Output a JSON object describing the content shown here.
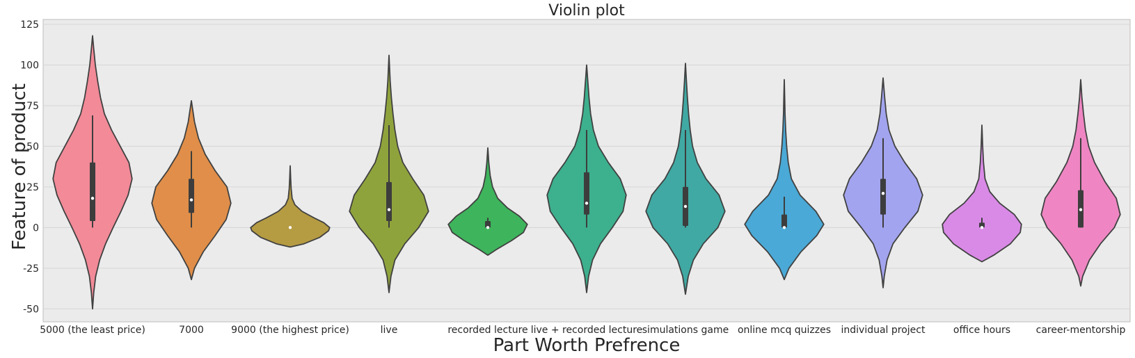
{
  "chart_data": {
    "type": "violin",
    "title": "Violin plot",
    "xlabel": "Part Worth Prefrence",
    "ylabel": "Feature of product",
    "ylim": [
      -58,
      128
    ],
    "yticks": [
      -50,
      -25,
      0,
      25,
      50,
      75,
      100,
      125
    ],
    "grid": true,
    "background": "#ebebeb",
    "categories": [
      "5000 (the least price)",
      "7000",
      "9000 (the highest price)",
      "live",
      "recorded lecture",
      "live + recorded lecture",
      "simulations game",
      "online mcq quizzes",
      "individual project",
      "office hours",
      "career-mentorship"
    ],
    "colors": [
      "#f28a98",
      "#e08e49",
      "#b59b42",
      "#8fa33c",
      "#3eb45c",
      "#3db08d",
      "#40a9a3",
      "#4aa9d6",
      "#a3a4ef",
      "#d98ae6",
      "#ef86c3"
    ],
    "series": [
      {
        "min": -50,
        "max": 118,
        "q1": 4,
        "median": 18,
        "q3": 40,
        "whisker_low": 0,
        "whisker_high": 69,
        "profile": [
          [
            -50,
            0
          ],
          [
            -40,
            0.03
          ],
          [
            -30,
            0.08
          ],
          [
            -20,
            0.18
          ],
          [
            -10,
            0.33
          ],
          [
            0,
            0.52
          ],
          [
            10,
            0.72
          ],
          [
            20,
            0.9
          ],
          [
            30,
            1
          ],
          [
            40,
            0.92
          ],
          [
            50,
            0.7
          ],
          [
            60,
            0.48
          ],
          [
            70,
            0.3
          ],
          [
            80,
            0.2
          ],
          [
            90,
            0.13
          ],
          [
            100,
            0.07
          ],
          [
            110,
            0.03
          ],
          [
            118,
            0
          ]
        ]
      },
      {
        "min": -32,
        "max": 78,
        "q1": 9,
        "median": 17,
        "q3": 30,
        "whisker_low": 0,
        "whisker_high": 47,
        "profile": [
          [
            -32,
            0
          ],
          [
            -25,
            0.08
          ],
          [
            -15,
            0.3
          ],
          [
            -5,
            0.6
          ],
          [
            5,
            0.88
          ],
          [
            15,
            1
          ],
          [
            25,
            0.9
          ],
          [
            35,
            0.6
          ],
          [
            45,
            0.35
          ],
          [
            55,
            0.18
          ],
          [
            65,
            0.08
          ],
          [
            78,
            0
          ]
        ]
      },
      {
        "min": -12,
        "max": 38,
        "q1": 0,
        "median": 0,
        "q3": 0,
        "whisker_low": 0,
        "whisker_high": 0,
        "profile": [
          [
            -12,
            0
          ],
          [
            -10,
            0.35
          ],
          [
            -6,
            0.75
          ],
          [
            -2,
            0.97
          ],
          [
            0,
            1
          ],
          [
            3,
            0.85
          ],
          [
            6,
            0.6
          ],
          [
            10,
            0.3
          ],
          [
            14,
            0.12
          ],
          [
            18,
            0.05
          ],
          [
            24,
            0.025
          ],
          [
            30,
            0.012
          ],
          [
            38,
            0
          ]
        ]
      },
      {
        "min": -40,
        "max": 106,
        "q1": 4,
        "median": 11,
        "q3": 28,
        "whisker_low": 0,
        "whisker_high": 63,
        "profile": [
          [
            -40,
            0
          ],
          [
            -30,
            0.05
          ],
          [
            -20,
            0.15
          ],
          [
            -10,
            0.4
          ],
          [
            0,
            0.75
          ],
          [
            10,
            1
          ],
          [
            20,
            0.88
          ],
          [
            30,
            0.6
          ],
          [
            40,
            0.35
          ],
          [
            50,
            0.22
          ],
          [
            60,
            0.15
          ],
          [
            70,
            0.1
          ],
          [
            80,
            0.06
          ],
          [
            90,
            0.03
          ],
          [
            106,
            0
          ]
        ]
      },
      {
        "min": -17,
        "max": 49,
        "q1": 0,
        "median": 0,
        "q3": 4,
        "whisker_low": 0,
        "whisker_high": 6,
        "profile": [
          [
            -17,
            0
          ],
          [
            -13,
            0.25
          ],
          [
            -8,
            0.6
          ],
          [
            -3,
            0.9
          ],
          [
            2,
            1
          ],
          [
            7,
            0.8
          ],
          [
            12,
            0.5
          ],
          [
            18,
            0.25
          ],
          [
            25,
            0.12
          ],
          [
            32,
            0.06
          ],
          [
            40,
            0.025
          ],
          [
            49,
            0
          ]
        ]
      },
      {
        "min": -40,
        "max": 100,
        "q1": 8,
        "median": 15,
        "q3": 34,
        "whisker_low": 0,
        "whisker_high": 60,
        "profile": [
          [
            -40,
            0
          ],
          [
            -30,
            0.05
          ],
          [
            -20,
            0.15
          ],
          [
            -10,
            0.35
          ],
          [
            0,
            0.65
          ],
          [
            10,
            0.92
          ],
          [
            20,
            1
          ],
          [
            30,
            0.85
          ],
          [
            40,
            0.55
          ],
          [
            50,
            0.3
          ],
          [
            60,
            0.17
          ],
          [
            70,
            0.1
          ],
          [
            80,
            0.06
          ],
          [
            90,
            0.03
          ],
          [
            100,
            0
          ]
        ]
      },
      {
        "min": -41,
        "max": 101,
        "q1": 1,
        "median": 13,
        "q3": 25,
        "whisker_low": 0,
        "whisker_high": 60,
        "profile": [
          [
            -41,
            0
          ],
          [
            -30,
            0.07
          ],
          [
            -20,
            0.2
          ],
          [
            -10,
            0.45
          ],
          [
            0,
            0.82
          ],
          [
            10,
            1
          ],
          [
            20,
            0.85
          ],
          [
            30,
            0.52
          ],
          [
            40,
            0.3
          ],
          [
            50,
            0.18
          ],
          [
            60,
            0.12
          ],
          [
            70,
            0.08
          ],
          [
            80,
            0.05
          ],
          [
            90,
            0.025
          ],
          [
            101,
            0
          ]
        ]
      },
      {
        "min": -32,
        "max": 91,
        "q1": 0,
        "median": 0,
        "q3": 8,
        "whisker_low": 0,
        "whisker_high": 19,
        "profile": [
          [
            -32,
            0
          ],
          [
            -25,
            0.12
          ],
          [
            -15,
            0.42
          ],
          [
            -5,
            0.82
          ],
          [
            2,
            1
          ],
          [
            10,
            0.8
          ],
          [
            20,
            0.4
          ],
          [
            30,
            0.18
          ],
          [
            40,
            0.1
          ],
          [
            50,
            0.06
          ],
          [
            60,
            0.035
          ],
          [
            70,
            0.02
          ],
          [
            80,
            0.01
          ],
          [
            91,
            0
          ]
        ]
      },
      {
        "min": -37,
        "max": 92,
        "q1": 8,
        "median": 21,
        "q3": 30,
        "whisker_low": 0,
        "whisker_high": 55,
        "profile": [
          [
            -37,
            0
          ],
          [
            -30,
            0.03
          ],
          [
            -20,
            0.1
          ],
          [
            -10,
            0.25
          ],
          [
            0,
            0.55
          ],
          [
            10,
            0.88
          ],
          [
            20,
            1
          ],
          [
            30,
            0.85
          ],
          [
            40,
            0.55
          ],
          [
            50,
            0.3
          ],
          [
            60,
            0.15
          ],
          [
            70,
            0.08
          ],
          [
            80,
            0.04
          ],
          [
            92,
            0
          ]
        ]
      },
      {
        "min": -21,
        "max": 63,
        "q1": 0,
        "median": 0,
        "q3": 3,
        "whisker_low": 0,
        "whisker_high": 6,
        "profile": [
          [
            -21,
            0
          ],
          [
            -17,
            0.3
          ],
          [
            -10,
            0.72
          ],
          [
            -3,
            0.97
          ],
          [
            2,
            1
          ],
          [
            8,
            0.82
          ],
          [
            15,
            0.45
          ],
          [
            22,
            0.2
          ],
          [
            30,
            0.08
          ],
          [
            40,
            0.04
          ],
          [
            50,
            0.02
          ],
          [
            63,
            0
          ]
        ]
      },
      {
        "min": -36,
        "max": 91,
        "q1": 0,
        "median": 11,
        "q3": 23,
        "whisker_low": 0,
        "whisker_high": 55,
        "profile": [
          [
            -36,
            0
          ],
          [
            -30,
            0.05
          ],
          [
            -20,
            0.22
          ],
          [
            -10,
            0.5
          ],
          [
            0,
            0.85
          ],
          [
            8,
            1
          ],
          [
            18,
            0.9
          ],
          [
            28,
            0.62
          ],
          [
            40,
            0.35
          ],
          [
            50,
            0.2
          ],
          [
            60,
            0.12
          ],
          [
            70,
            0.07
          ],
          [
            80,
            0.03
          ],
          [
            91,
            0
          ]
        ]
      }
    ]
  }
}
